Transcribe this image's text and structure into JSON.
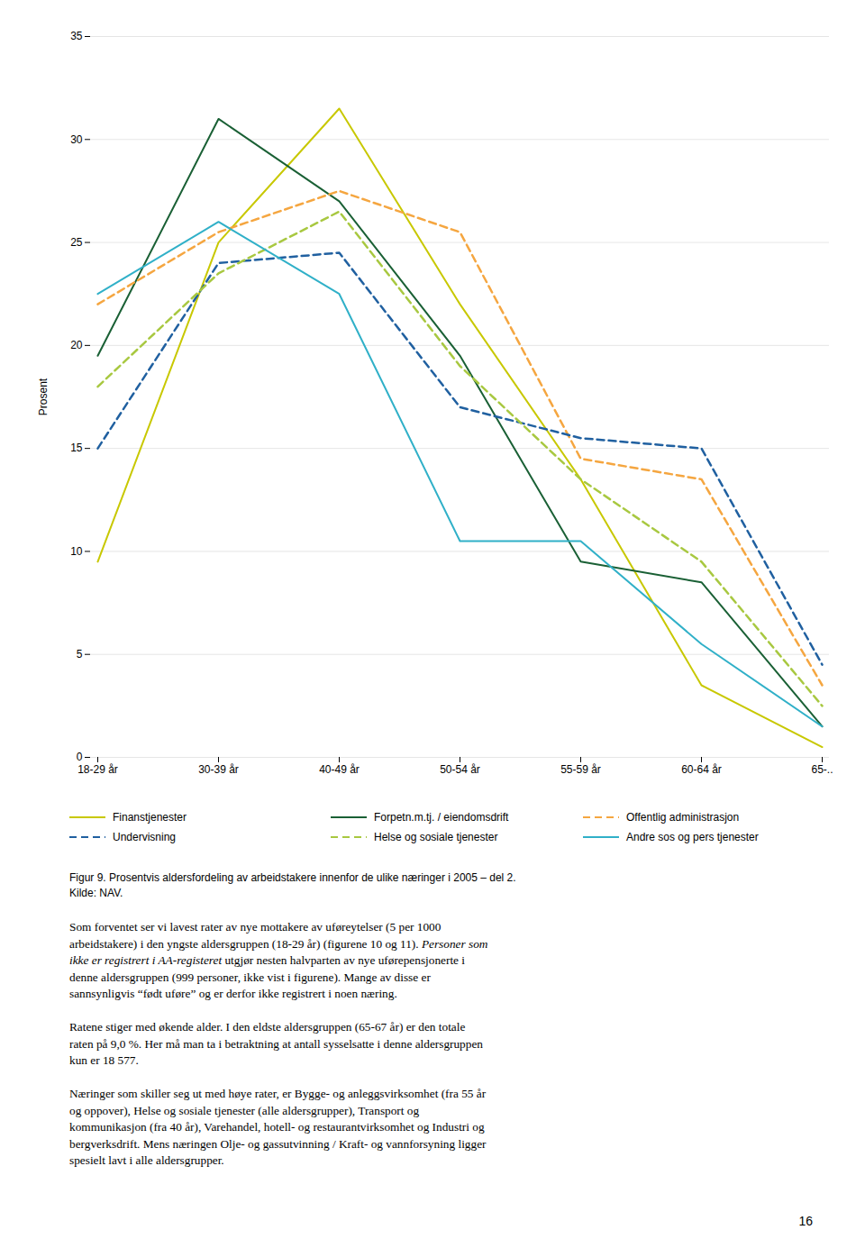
{
  "chart_data": {
    "type": "line",
    "categories": [
      "18-29 år",
      "30-39 år",
      "40-49 år",
      "50-54 år",
      "55-59 år",
      "60-64 år",
      "65-.."
    ],
    "series": [
      {
        "name": "Finanstjenester",
        "color": "#c8c800",
        "line_style": "solid",
        "values": [
          9.5,
          25.0,
          31.5,
          22.0,
          13.5,
          3.5,
          0.5
        ]
      },
      {
        "name": "Forреtn.m.tj. / eiendomsdrift",
        "color": "#1a6035",
        "line_style": "solid",
        "values": [
          19.5,
          31.0,
          27.0,
          19.5,
          9.5,
          8.5,
          1.5
        ]
      },
      {
        "name": "Offentlig administrasjon",
        "color": "#f5a640",
        "line_style": "dashed",
        "values": [
          22.0,
          25.5,
          27.5,
          25.5,
          14.5,
          13.5,
          3.5
        ]
      },
      {
        "name": "Undervisning",
        "color": "#2060a0",
        "line_style": "dashed",
        "values": [
          15.0,
          24.0,
          24.5,
          17.0,
          15.5,
          15.0,
          4.5
        ]
      },
      {
        "name": "Helse og sosiale tjenester",
        "color": "#a8c840",
        "line_style": "dashed",
        "values": [
          18.0,
          23.5,
          26.5,
          19.0,
          13.5,
          9.5,
          2.5
        ]
      },
      {
        "name": "Andre sos og pers tjenester",
        "color": "#30b0c8",
        "line_style": "solid",
        "values": [
          22.5,
          26.0,
          22.5,
          10.5,
          10.5,
          5.5,
          1.5
        ]
      }
    ],
    "ylabel": "Prosent",
    "ylim": [
      0,
      35
    ],
    "yticks": [
      0,
      5,
      10,
      15,
      20,
      25,
      30,
      35
    ],
    "grid": true,
    "legend": "bottom"
  },
  "caption": [
    "Figur 9. Prosentvis aldersfordeling av arbeidstakere innenfor de ulike næringer i 2005 – del 2.",
    "Kilde: NAV."
  ],
  "body": [
    [
      [
        {
          "text": "Som forventet ser vi lavest rater av nye mottakere av uføreytelser (5 per 1000",
          "italic": false
        }
      ],
      [
        {
          "text": "arbeidstakere) i den yngste aldersgruppen (18-29 år) (figurene 10 og 11). ",
          "italic": false
        },
        {
          "text": "Personer som",
          "italic": true
        }
      ],
      [
        {
          "text": "ikke er registrert i AA-registeret",
          "italic": true
        },
        {
          "text": " utgjør nesten halvparten av nye uførepensjonerte i",
          "italic": false
        }
      ],
      [
        {
          "text": "denne aldersgruppen (999 personer, ikke vist i figurene). Mange av disse er",
          "italic": false
        }
      ],
      [
        {
          "text": "sannsynligvis “født uføre” og er derfor ikke registrert i noen næring.",
          "italic": false
        }
      ]
    ],
    [
      [
        {
          "text": "Ratene stiger med økende alder. I den eldste aldersgruppen (65-67 år) er den totale",
          "italic": false
        }
      ],
      [
        {
          "text": "raten på 9,0 %. Her må man ta i betraktning at antall sysselsatte i denne aldersgruppen",
          "italic": false
        }
      ],
      [
        {
          "text": "kun er 18 577.",
          "italic": false
        }
      ]
    ],
    [
      [
        {
          "text": "Næringer som skiller seg ut med høye rater, er Bygge- og anleggsvirksomhet (fra 55 år",
          "italic": false
        }
      ],
      [
        {
          "text": "og oppover), Helse og sosiale tjenester (alle aldersgrupper), Transport og",
          "italic": false
        }
      ],
      [
        {
          "text": "kommunikasjon (fra 40 år), Varehandel, hotell- og restaurantvirksomhet og Industri og",
          "italic": false
        }
      ],
      [
        {
          "text": "bergverksdrift. Mens næringen Olje- og gassutvinning / Kraft- og vannforsyning ligger",
          "italic": false
        }
      ],
      [
        {
          "text": "spesielt lavt i alle aldersgrupper.",
          "italic": false
        }
      ]
    ]
  ],
  "page_number": "16"
}
